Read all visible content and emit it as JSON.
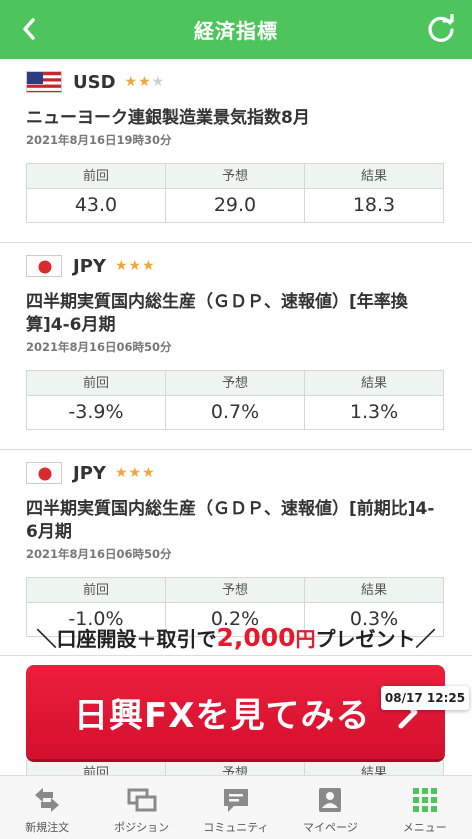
{
  "header": {
    "title": "経済指標"
  },
  "colors": {
    "brand_green": "#4ec45c",
    "star": "#f3a63a",
    "cta_red": "#e8192c"
  },
  "indicators": [
    {
      "currency": "USD",
      "stars_on": 2,
      "stars_total": 3,
      "title": "ニューヨーク連銀製造業景気指数8月",
      "date": "2021年8月16日19時30分",
      "headers": [
        "前回",
        "予想",
        "結果"
      ],
      "values": [
        "43.0",
        "29.0",
        "18.3"
      ]
    },
    {
      "currency": "JPY",
      "stars_on": 3,
      "stars_total": 3,
      "title": "四半期実質国内総生産（ＧＤＰ、速報値）[年率換算]4-6月期",
      "date": "2021年8月16日06時50分",
      "headers": [
        "前回",
        "予想",
        "結果"
      ],
      "values": [
        "-3.9%",
        "0.7%",
        "1.3%"
      ]
    },
    {
      "currency": "JPY",
      "stars_on": 3,
      "stars_total": 3,
      "title": "四半期実質国内総生産（ＧＤＰ、速報値）[前期比]4-6月期",
      "date": "2021年8月16日06時50分",
      "headers": [
        "前回",
        "予想",
        "結果"
      ],
      "values": [
        "-1.0%",
        "0.2%",
        "0.3%"
      ]
    }
  ],
  "next_item": {
    "headers": [
      "前回",
      "予想",
      "結果"
    ]
  },
  "promo": {
    "prefix": "＼口座開設＋取引で",
    "amount": "2,000",
    "yen": "円",
    "suffix": "プレゼント／",
    "cta_label": "日興FXを見てみる"
  },
  "timestamp": "08/17 12:25",
  "tabs": [
    {
      "label": "新規注文",
      "icon": "swap-arrows-icon"
    },
    {
      "label": "ポジション",
      "icon": "position-stack-icon"
    },
    {
      "label": "コミュニティ",
      "icon": "chat-bubble-icon"
    },
    {
      "label": "マイページ",
      "icon": "person-badge-icon"
    },
    {
      "label": "メニュー",
      "icon": "grid-menu-icon"
    }
  ]
}
